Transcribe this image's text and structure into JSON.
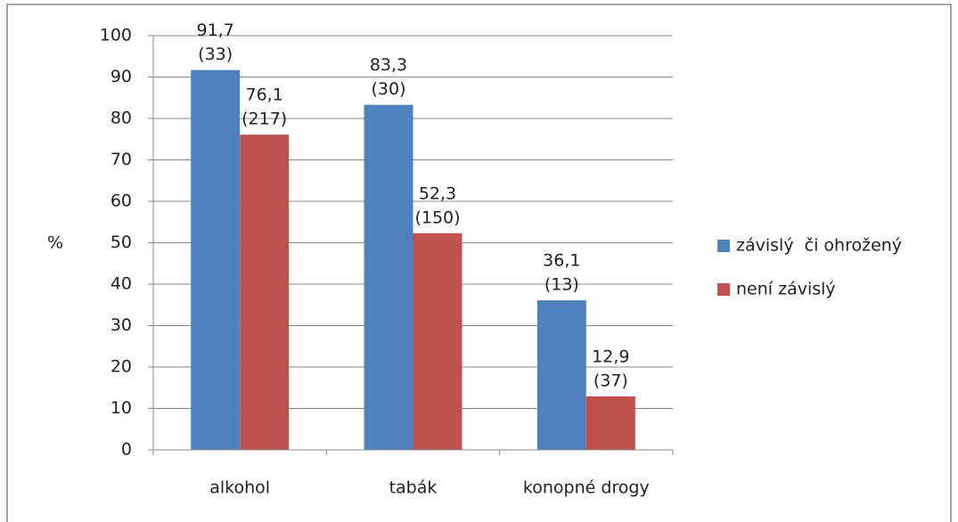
{
  "chart_data": {
    "type": "bar",
    "y_label": "%",
    "categories": [
      "alkohol",
      "tabák",
      "konopné drogy"
    ],
    "series": [
      {
        "name": "závislý  či ohrožený",
        "color": "#4f81bd",
        "values": [
          91.7,
          83.3,
          36.1
        ],
        "value_labels": [
          "91,7",
          "83,3",
          "36,1"
        ],
        "counts": [
          "(33)",
          "(30)",
          "(13)"
        ]
      },
      {
        "name": "není závislý",
        "color": "#c0504d",
        "values": [
          76.1,
          52.3,
          12.9
        ],
        "value_labels": [
          "76,1",
          "52,3",
          "12,9"
        ],
        "counts": [
          "(217)",
          "(150)",
          "(37)"
        ]
      }
    ],
    "ylim": [
      0,
      100
    ],
    "yticks": [
      0,
      10,
      20,
      30,
      40,
      50,
      60,
      70,
      80,
      90,
      100
    ],
    "grid": true,
    "legend": "right"
  }
}
